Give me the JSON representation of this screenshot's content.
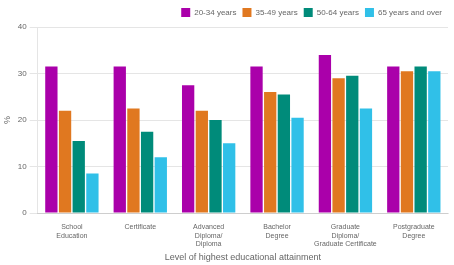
{
  "chart_data": {
    "type": "bar",
    "categories": [
      "School\nEducation",
      "Certificate",
      "Advanced\nDiploma/\nDiploma",
      "Bachelor\nDegree",
      "Graduate\nDiploma/\nGraduate Certificate",
      "Postgraduate\nDegree"
    ],
    "series": [
      {
        "name": "20-34 years",
        "color": "#AA00AA",
        "values": [
          31.5,
          31.5,
          27.5,
          31.5,
          34.0,
          31.5
        ]
      },
      {
        "name": "35-49 years",
        "color": "#E07820",
        "values": [
          22.0,
          22.5,
          22.0,
          26.0,
          29.0,
          30.5
        ]
      },
      {
        "name": "50-64 years",
        "color": "#008B7A",
        "values": [
          15.5,
          17.5,
          20.0,
          25.5,
          29.5,
          31.5
        ]
      },
      {
        "name": "65 years and over",
        "color": "#30C0E8",
        "values": [
          8.5,
          12.0,
          15.0,
          20.5,
          22.5,
          30.5
        ]
      }
    ],
    "xlabel": "Level of highest educational attainment",
    "ylabel": "%",
    "ylim": [
      0,
      40
    ],
    "yticks": [
      0,
      10,
      20,
      30,
      40
    ],
    "grid": true,
    "legend": "upper right"
  }
}
